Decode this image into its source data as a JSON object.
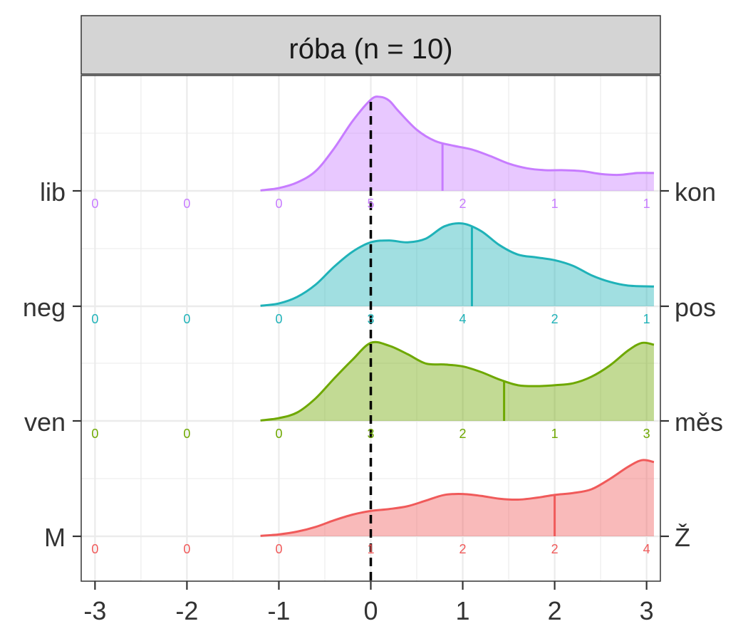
{
  "chart_data": {
    "type": "ridgeline-density",
    "strip_title": "róba (n = 10)",
    "xlim": [
      -3.15,
      3.15
    ],
    "x_ticks": [
      -3,
      -2,
      -1,
      0,
      1,
      2,
      3
    ],
    "x_tick_labels": [
      "-3",
      "-2",
      "-1",
      "0",
      "1",
      "2",
      "3"
    ],
    "reference_line_x": 0,
    "grid": true,
    "count_positions": [
      -3,
      -2,
      -1,
      0,
      1,
      2,
      3
    ],
    "rows": [
      {
        "left_label": "lib",
        "right_label": "kon",
        "color": "#c77cff",
        "mean": 0.78,
        "counts": [
          0,
          0,
          0,
          5,
          2,
          1,
          1
        ],
        "density": [
          [
            -1.2,
            0.005
          ],
          [
            -1.0,
            0.03
          ],
          [
            -0.8,
            0.09
          ],
          [
            -0.6,
            0.21
          ],
          [
            -0.4,
            0.45
          ],
          [
            -0.2,
            0.74
          ],
          [
            0.0,
            0.97
          ],
          [
            0.1,
            1.0
          ],
          [
            0.2,
            0.96
          ],
          [
            0.3,
            0.85
          ],
          [
            0.5,
            0.65
          ],
          [
            0.7,
            0.53
          ],
          [
            0.9,
            0.48
          ],
          [
            1.1,
            0.44
          ],
          [
            1.3,
            0.37
          ],
          [
            1.5,
            0.29
          ],
          [
            1.7,
            0.24
          ],
          [
            1.9,
            0.22
          ],
          [
            2.1,
            0.22
          ],
          [
            2.3,
            0.21
          ],
          [
            2.5,
            0.18
          ],
          [
            2.7,
            0.17
          ],
          [
            2.9,
            0.19
          ],
          [
            3.08,
            0.19
          ]
        ]
      },
      {
        "left_label": "neg",
        "right_label": "pos",
        "color": "#1fb2b8",
        "mean": 1.1,
        "counts": [
          0,
          0,
          0,
          3,
          4,
          2,
          1
        ],
        "density": [
          [
            -1.2,
            0.005
          ],
          [
            -1.0,
            0.03
          ],
          [
            -0.8,
            0.1
          ],
          [
            -0.6,
            0.23
          ],
          [
            -0.4,
            0.42
          ],
          [
            -0.2,
            0.58
          ],
          [
            0.0,
            0.68
          ],
          [
            0.2,
            0.7
          ],
          [
            0.4,
            0.68
          ],
          [
            0.6,
            0.72
          ],
          [
            0.8,
            0.85
          ],
          [
            1.0,
            0.88
          ],
          [
            1.2,
            0.8
          ],
          [
            1.4,
            0.65
          ],
          [
            1.6,
            0.55
          ],
          [
            1.8,
            0.52
          ],
          [
            2.0,
            0.49
          ],
          [
            2.2,
            0.43
          ],
          [
            2.4,
            0.33
          ],
          [
            2.6,
            0.26
          ],
          [
            2.8,
            0.22
          ],
          [
            3.08,
            0.21
          ]
        ]
      },
      {
        "left_label": "ven",
        "right_label": "měs",
        "color": "#6ea800",
        "mean": 1.45,
        "counts": [
          0,
          0,
          0,
          3,
          2,
          1,
          3
        ],
        "density": [
          [
            -1.2,
            0.005
          ],
          [
            -1.0,
            0.03
          ],
          [
            -0.8,
            0.09
          ],
          [
            -0.6,
            0.24
          ],
          [
            -0.4,
            0.45
          ],
          [
            -0.2,
            0.65
          ],
          [
            0.0,
            0.83
          ],
          [
            0.2,
            0.8
          ],
          [
            0.4,
            0.71
          ],
          [
            0.6,
            0.61
          ],
          [
            0.8,
            0.6
          ],
          [
            1.0,
            0.58
          ],
          [
            1.2,
            0.52
          ],
          [
            1.4,
            0.44
          ],
          [
            1.6,
            0.38
          ],
          [
            1.8,
            0.37
          ],
          [
            2.0,
            0.38
          ],
          [
            2.2,
            0.4
          ],
          [
            2.4,
            0.47
          ],
          [
            2.6,
            0.59
          ],
          [
            2.8,
            0.75
          ],
          [
            2.95,
            0.83
          ],
          [
            3.08,
            0.81
          ]
        ]
      },
      {
        "left_label": "M",
        "right_label": "Ž",
        "color": "#f05a5a",
        "mean": 2.0,
        "counts": [
          0,
          0,
          0,
          1,
          2,
          2,
          4
        ],
        "density": [
          [
            -1.2,
            0.005
          ],
          [
            -1.0,
            0.02
          ],
          [
            -0.8,
            0.05
          ],
          [
            -0.6,
            0.1
          ],
          [
            -0.4,
            0.17
          ],
          [
            -0.2,
            0.23
          ],
          [
            0.0,
            0.27
          ],
          [
            0.2,
            0.29
          ],
          [
            0.4,
            0.32
          ],
          [
            0.6,
            0.38
          ],
          [
            0.8,
            0.44
          ],
          [
            1.0,
            0.45
          ],
          [
            1.2,
            0.43
          ],
          [
            1.4,
            0.4
          ],
          [
            1.6,
            0.39
          ],
          [
            1.8,
            0.41
          ],
          [
            2.0,
            0.44
          ],
          [
            2.2,
            0.46
          ],
          [
            2.4,
            0.5
          ],
          [
            2.6,
            0.61
          ],
          [
            2.8,
            0.74
          ],
          [
            2.95,
            0.81
          ],
          [
            3.08,
            0.79
          ]
        ]
      }
    ]
  }
}
